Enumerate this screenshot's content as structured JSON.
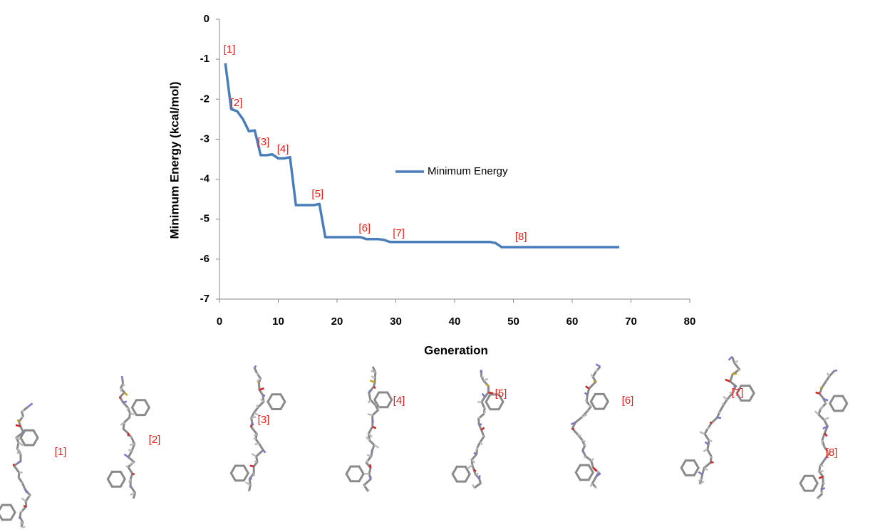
{
  "chart_data": {
    "type": "line",
    "xlabel": "Generation",
    "ylabel": "Minimum Energy (kcal/mol)",
    "xlim": [
      0,
      80
    ],
    "xticks": [
      0,
      10,
      20,
      30,
      40,
      50,
      60,
      70,
      80
    ],
    "ylim": [
      -7,
      0
    ],
    "yticks": [
      -7,
      -6,
      -5,
      -4,
      -3,
      -2,
      -1,
      0
    ],
    "grid": false,
    "legend": "center",
    "x": [
      1,
      2,
      3,
      4,
      5,
      6,
      7,
      8,
      9,
      10,
      11,
      12,
      13,
      14,
      15,
      16,
      17,
      18,
      19,
      20,
      24,
      25,
      27,
      28,
      29,
      35,
      40,
      46,
      47,
      48,
      50,
      55,
      60,
      65,
      68
    ],
    "series": [
      {
        "name": "Minimum Energy",
        "color": "#4a7ebb",
        "values": [
          -1.1,
          -2.25,
          -2.3,
          -2.5,
          -2.8,
          -2.78,
          -3.4,
          -3.4,
          -3.38,
          -3.48,
          -3.48,
          -3.45,
          -4.65,
          -4.65,
          -4.65,
          -4.65,
          -4.62,
          -5.45,
          -5.45,
          -5.45,
          -5.45,
          -5.5,
          -5.5,
          -5.52,
          -5.57,
          -5.57,
          -5.57,
          -5.57,
          -5.6,
          -5.7,
          -5.7,
          -5.7,
          -5.7,
          -5.7,
          -5.7
        ]
      }
    ],
    "annotations": [
      {
        "text": "[1]",
        "x": 1.7,
        "y": -0.77
      },
      {
        "text": "[2]",
        "x": 2.9,
        "y": -2.1
      },
      {
        "text": "[3]",
        "x": 7.5,
        "y": -3.08
      },
      {
        "text": "[4]",
        "x": 10.8,
        "y": -3.26
      },
      {
        "text": "[5]",
        "x": 16.7,
        "y": -4.38
      },
      {
        "text": "[6]",
        "x": 24.7,
        "y": -5.24
      },
      {
        "text": "[7]",
        "x": 30.5,
        "y": -5.36
      },
      {
        "text": "[8]",
        "x": 51.3,
        "y": -5.45
      }
    ]
  },
  "structures": [
    "[1]",
    "[2]",
    "[3]",
    "[4]",
    "[5]",
    "[6]",
    "[7]",
    "[8]"
  ]
}
